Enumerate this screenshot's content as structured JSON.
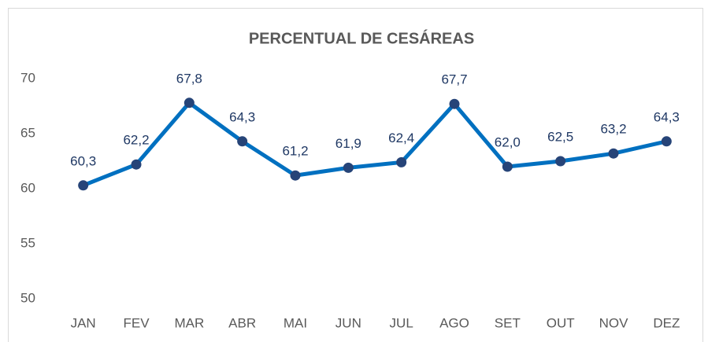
{
  "chart_data": {
    "type": "line",
    "title": "PERCENTUAL DE CESÁREAS",
    "categories": [
      "JAN",
      "FEV",
      "MAR",
      "ABR",
      "MAI",
      "JUN",
      "JUL",
      "AGO",
      "SET",
      "OUT",
      "NOV",
      "DEZ"
    ],
    "values": [
      60.3,
      62.2,
      67.8,
      64.3,
      61.2,
      61.9,
      62.4,
      67.7,
      62.0,
      62.5,
      63.2,
      64.3
    ],
    "value_labels": [
      "60,3",
      "62,2",
      "67,8",
      "64,3",
      "61,2",
      "61,9",
      "62,4",
      "67,7",
      "62,0",
      "62,5",
      "63,2",
      "64,3"
    ],
    "color": "#0070c0",
    "marker_color": "#264478",
    "ylim": [
      50,
      70
    ],
    "yticks": [
      50,
      55,
      60,
      65,
      70
    ],
    "grid": false
  }
}
